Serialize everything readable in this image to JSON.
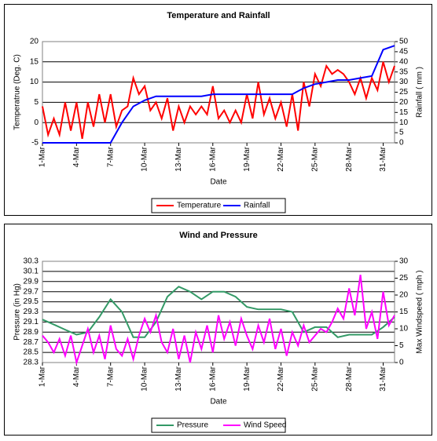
{
  "chart_data": [
    {
      "type": "line",
      "title": "Temperature and Rainfall",
      "x_label": "Date",
      "y_label": "Temperatrue (Deg. C)",
      "y2_label": "Rainfall ( mm )",
      "xlim": [
        1,
        32
      ],
      "xticks": [
        {
          "value": 1,
          "label": "1-Mar"
        },
        {
          "value": 4,
          "label": "4-Mar"
        },
        {
          "value": 7,
          "label": "7-Mar"
        },
        {
          "value": 10,
          "label": "10-Mar"
        },
        {
          "value": 13,
          "label": "13-Mar"
        },
        {
          "value": 16,
          "label": "16-Mar"
        },
        {
          "value": 19,
          "label": "19-Mar"
        },
        {
          "value": 22,
          "label": "22-Mar"
        },
        {
          "value": 25,
          "label": "25-Mar"
        },
        {
          "value": 28,
          "label": "28-Mar"
        },
        {
          "value": 31,
          "label": "31-Mar"
        }
      ],
      "ylim": [
        -5,
        20
      ],
      "yticks": [
        -5,
        0,
        5,
        10,
        15,
        20
      ],
      "y2lim": [
        0,
        50
      ],
      "y2ticks": [
        0,
        5,
        10,
        15,
        20,
        25,
        30,
        35,
        40,
        45,
        50
      ],
      "grid": true,
      "legend": "bottom",
      "series": [
        {
          "name": "Temperature",
          "color": "#ff0000",
          "x": [
            1,
            1.5,
            2,
            2.5,
            3,
            3.5,
            4,
            4.5,
            5,
            5.5,
            6,
            6.5,
            7,
            7.5,
            8,
            8.5,
            9,
            9.5,
            10,
            10.5,
            11,
            11.5,
            12,
            12.5,
            13,
            13.5,
            14,
            14.5,
            15,
            15.5,
            16,
            16.5,
            17,
            17.5,
            18,
            18.5,
            19,
            19.5,
            20,
            20.5,
            21,
            21.5,
            22,
            22.5,
            23,
            23.5,
            24,
            24.5,
            25,
            25.5,
            26,
            26.5,
            27,
            27.5,
            28,
            28.5,
            29,
            29.5,
            30,
            30.5,
            31,
            31.5,
            32
          ],
          "values": [
            4,
            -3,
            1,
            -3,
            5,
            -2,
            5,
            -4,
            5,
            -1,
            7,
            0,
            7,
            -1,
            3,
            4,
            11,
            7,
            9,
            3,
            5,
            1,
            6,
            -2,
            4,
            0,
            4,
            2,
            4,
            2,
            9,
            1,
            3,
            0,
            3,
            0,
            7,
            1,
            10,
            2,
            6,
            1,
            5,
            -1,
            7,
            -2,
            10,
            4,
            12,
            9,
            14,
            12,
            13,
            12,
            10,
            7,
            11,
            6,
            11,
            8,
            15,
            10,
            14
          ]
        },
        {
          "name": "Rainfall",
          "color": "#0000ff",
          "axis": "y2",
          "x": [
            1,
            2,
            3,
            4,
            5,
            6,
            7,
            8,
            9,
            10,
            11,
            12,
            13,
            14,
            15,
            16,
            17,
            18,
            19,
            20,
            21,
            22,
            23,
            24,
            25,
            26,
            27,
            28,
            29,
            30,
            31,
            32
          ],
          "values": [
            0,
            0,
            0,
            0,
            0,
            0,
            0,
            10,
            18,
            21,
            23,
            23,
            23,
            23,
            23,
            24,
            24,
            24,
            24,
            24,
            24,
            24,
            24,
            27,
            29,
            30,
            31,
            31,
            32,
            33,
            46,
            48
          ]
        }
      ]
    },
    {
      "type": "line",
      "title": "Wind and Pressure",
      "x_label": "Date",
      "y_label": "Pressure (in Hg)",
      "y2_label": "Max Windspeed ( mph )",
      "xlim": [
        1,
        32
      ],
      "xticks": [
        {
          "value": 1,
          "label": "1-Mar"
        },
        {
          "value": 4,
          "label": "4-Mar"
        },
        {
          "value": 7,
          "label": "7-Mar"
        },
        {
          "value": 10,
          "label": "10-Mar"
        },
        {
          "value": 13,
          "label": "13-Mar"
        },
        {
          "value": 16,
          "label": "16-Mar"
        },
        {
          "value": 19,
          "label": "19-Mar"
        },
        {
          "value": 22,
          "label": "22-Mar"
        },
        {
          "value": 25,
          "label": "25-Mar"
        },
        {
          "value": 28,
          "label": "28-Mar"
        },
        {
          "value": 31,
          "label": "31-Mar"
        }
      ],
      "ylim": [
        28.3,
        30.3
      ],
      "yticks": [
        28.3,
        28.5,
        28.7,
        28.9,
        29.1,
        29.3,
        29.5,
        29.7,
        29.9,
        30.1,
        30.3
      ],
      "y2lim": [
        0,
        30
      ],
      "y2ticks": [
        0,
        5,
        10,
        15,
        20,
        25,
        30
      ],
      "grid": true,
      "legend": "bottom",
      "series": [
        {
          "name": "Pressure",
          "color": "#339966",
          "x": [
            1,
            2,
            3,
            4,
            5,
            6,
            7,
            8,
            9,
            10,
            11,
            12,
            13,
            14,
            15,
            16,
            17,
            18,
            19,
            20,
            21,
            22,
            23,
            24,
            25,
            26,
            27,
            28,
            29,
            30,
            31,
            32
          ],
          "values": [
            29.15,
            29.05,
            28.95,
            28.85,
            28.9,
            29.2,
            29.55,
            29.3,
            28.8,
            28.8,
            29.1,
            29.6,
            29.8,
            29.7,
            29.55,
            29.7,
            29.7,
            29.6,
            29.4,
            29.35,
            29.35,
            29.35,
            29.3,
            28.9,
            29.0,
            29.0,
            28.8,
            28.85,
            28.85,
            28.85,
            29.0,
            29.2
          ]
        },
        {
          "name": "Wind Speed",
          "color": "#ff00ff",
          "axis": "y2",
          "x": [
            1,
            1.5,
            2,
            2.5,
            3,
            3.5,
            4,
            4.5,
            5,
            5.5,
            6,
            6.5,
            7,
            7.5,
            8,
            8.5,
            9,
            9.5,
            10,
            10.5,
            11,
            11.5,
            12,
            12.5,
            13,
            13.5,
            14,
            14.5,
            15,
            15.5,
            16,
            16.5,
            17,
            17.5,
            18,
            18.5,
            19,
            19.5,
            20,
            20.5,
            21,
            21.5,
            22,
            22.5,
            23,
            23.5,
            24,
            24.5,
            25,
            25.5,
            26,
            26.5,
            27,
            27.5,
            28,
            28.5,
            29,
            29.5,
            30,
            30.5,
            31,
            31.5,
            32
          ],
          "values": [
            8,
            6,
            3,
            7,
            2,
            8,
            0,
            5,
            10,
            3,
            8,
            1,
            11,
            4,
            2,
            7,
            1,
            8,
            13,
            9,
            14,
            6,
            3,
            10,
            1,
            8,
            0,
            9,
            4,
            11,
            3,
            14,
            7,
            12,
            5,
            13,
            8,
            4,
            11,
            6,
            13,
            4,
            10,
            2,
            9,
            5,
            11,
            6,
            8,
            10,
            9,
            12,
            16,
            13,
            22,
            14,
            26,
            10,
            15,
            7,
            21,
            11,
            14
          ]
        }
      ]
    }
  ]
}
